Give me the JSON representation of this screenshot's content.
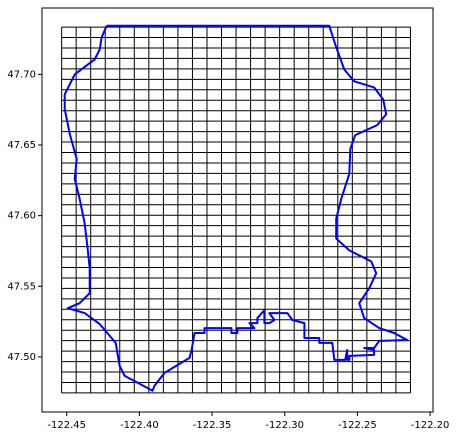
{
  "chart_data": {
    "type": "line",
    "xlim": [
      -122.467,
      -122.198
    ],
    "ylim": [
      47.461,
      47.747
    ],
    "xticks": [
      -122.45,
      {
        "value": -122.4,
        "label": "-122.40"
      },
      -122.35,
      {
        "value": -122.3,
        "label": "-122.30"
      },
      -122.25,
      {
        "value": -122.2,
        "label": "-122.20"
      }
    ],
    "yticks": [
      {
        "value": 47.5,
        "label": "47.50"
      },
      47.55,
      {
        "value": 47.6,
        "label": "47.60"
      },
      47.65,
      {
        "value": 47.7,
        "label": "47.70"
      }
    ],
    "grid_lon": [
      -122.4535,
      -122.4435,
      -122.4335,
      -122.4235,
      -122.4135,
      -122.4035,
      -122.3935,
      -122.3835,
      -122.3735,
      -122.3635,
      -122.3535,
      -122.3435,
      -122.3335,
      -122.3235,
      -122.3135,
      -122.3035,
      -122.2935,
      -122.2835,
      -122.2735,
      -122.2635,
      -122.2535,
      -122.2435,
      -122.2335,
      -122.2235,
      -122.2135
    ],
    "grid_lat": [
      47.4745,
      47.4819,
      47.4893,
      47.4967,
      47.5041,
      47.5115,
      47.5189,
      47.5263,
      47.5337,
      47.5411,
      47.5485,
      47.5559,
      47.5633,
      47.5707,
      47.5781,
      47.5855,
      47.5929,
      47.6003,
      47.6077,
      47.6151,
      47.6225,
      47.6299,
      47.6373,
      47.6447,
      47.6521,
      47.6595,
      47.6669,
      47.6743,
      47.6817,
      47.6891,
      47.6965,
      47.7039,
      47.7113,
      47.7187,
      47.7261,
      47.7335
    ],
    "grid_color": "#000000",
    "series": [
      {
        "color": "#0000ff",
        "x": [
          -122.4225,
          -122.2694,
          -122.2652,
          -122.2591,
          -122.2522,
          -122.2385,
          -122.2323,
          -122.2302,
          -122.2364,
          -122.2515,
          -122.2549,
          -122.2556,
          -122.2611,
          -122.2646,
          -122.2646,
          -122.2556,
          -122.2405,
          -122.2371,
          -122.2419,
          -122.2488,
          -122.2453,
          -122.235,
          -122.2247,
          -122.2158,
          -122.235,
          -122.2385,
          -122.2453,
          -122.2385,
          -122.2385,
          -122.2556,
          -122.2556,
          -122.257,
          -122.257,
          -122.2584,
          -122.2659,
          -122.2673,
          -122.2762,
          -122.2762,
          -122.2865,
          -122.2865,
          -122.2948,
          -122.2982,
          -122.3106,
          -122.3071,
          -122.3106,
          -122.314,
          -122.314,
          -122.3188,
          -122.3188,
          -122.3243,
          -122.3209,
          -122.3326,
          -122.3326,
          -122.3367,
          -122.3367,
          -122.3552,
          -122.3552,
          -122.3621,
          -122.3641,
          -122.3655,
          -122.3827,
          -122.3896,
          -122.3909,
          -122.3999,
          -122.4102,
          -122.4136,
          -122.4163,
          -122.4273,
          -122.4376,
          -122.4493,
          -122.4411,
          -122.4342,
          -122.4342,
          -122.4356,
          -122.4376,
          -122.4411,
          -122.4445,
          -122.4431,
          -122.4479,
          -122.4514,
          -122.4514,
          -122.4445,
          -122.4308,
          -122.4273,
          -122.426,
          -122.4225
        ],
        "values": [
          47.7345,
          47.7345,
          47.7211,
          47.7035,
          47.6951,
          47.6908,
          47.6824,
          47.6718,
          47.6641,
          47.657,
          47.6472,
          47.6296,
          47.612,
          47.5979,
          47.5838,
          47.5754,
          47.5676,
          47.5592,
          47.5486,
          47.538,
          47.5275,
          47.5204,
          47.5169,
          47.512,
          47.5113,
          47.5063,
          47.5063,
          47.5049,
          47.5014,
          47.5007,
          47.4979,
          47.4979,
          47.5049,
          47.4979,
          47.4979,
          47.5099,
          47.5099,
          47.5134,
          47.5134,
          47.5239,
          47.5261,
          47.531,
          47.531,
          47.5261,
          47.5239,
          47.5239,
          47.5331,
          47.5275,
          47.5239,
          47.5239,
          47.5204,
          47.5204,
          47.5169,
          47.5169,
          47.5204,
          47.5204,
          47.5169,
          47.5169,
          47.5049,
          47.4993,
          47.4887,
          47.4796,
          47.4761,
          47.481,
          47.4866,
          47.4937,
          47.5099,
          47.5232,
          47.531,
          47.5345,
          47.538,
          47.5451,
          47.5627,
          47.5768,
          47.5944,
          47.612,
          47.6261,
          47.6401,
          47.6577,
          47.6754,
          47.6859,
          47.7,
          47.7106,
          47.7176,
          47.7261,
          47.7345
        ]
      }
    ]
  }
}
